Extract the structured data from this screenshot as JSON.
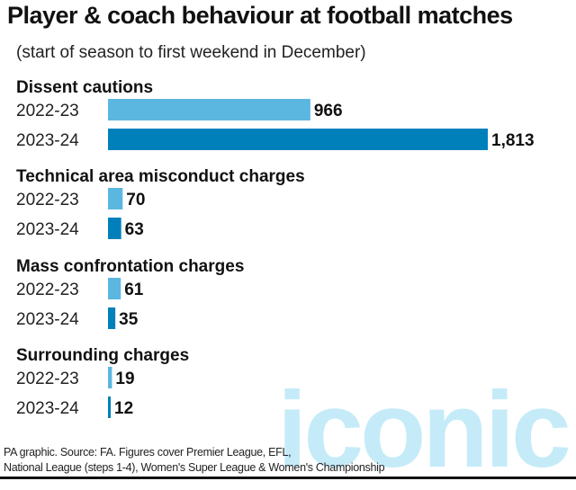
{
  "chart_data": {
    "type": "bar",
    "orientation": "horizontal",
    "title": "Player & coach behaviour at football matches",
    "subtitle": "(start of season to first weekend in December)",
    "colors": {
      "2022-23": "#5bb7e0",
      "2023-24": "#0080bb"
    },
    "groups": [
      {
        "name": "Dissent cautions",
        "rows": [
          {
            "label": "2022-23",
            "value": 966,
            "value_label": "966"
          },
          {
            "label": "2023-24",
            "value": 1813,
            "value_label": "1,813"
          }
        ]
      },
      {
        "name": "Technical area misconduct charges",
        "rows": [
          {
            "label": "2022-23",
            "value": 70,
            "value_label": "70"
          },
          {
            "label": "2023-24",
            "value": 63,
            "value_label": "63"
          }
        ]
      },
      {
        "name": "Mass confrontation charges",
        "rows": [
          {
            "label": "2022-23",
            "value": 61,
            "value_label": "61"
          },
          {
            "label": "2023-24",
            "value": 35,
            "value_label": "35"
          }
        ]
      },
      {
        "name": "Surrounding charges",
        "rows": [
          {
            "label": "2022-23",
            "value": 19,
            "value_label": "19"
          },
          {
            "label": "2023-24",
            "value": 12,
            "value_label": "12"
          }
        ]
      }
    ],
    "xlim": [
      0,
      1813
    ],
    "grid": false
  },
  "footer": {
    "line1": "PA graphic. Source: FA. Figures cover Premier League, EFL,",
    "line2": "National League (steps 1-4), Women's Super League & Women's Championship"
  },
  "watermark": "iconic"
}
